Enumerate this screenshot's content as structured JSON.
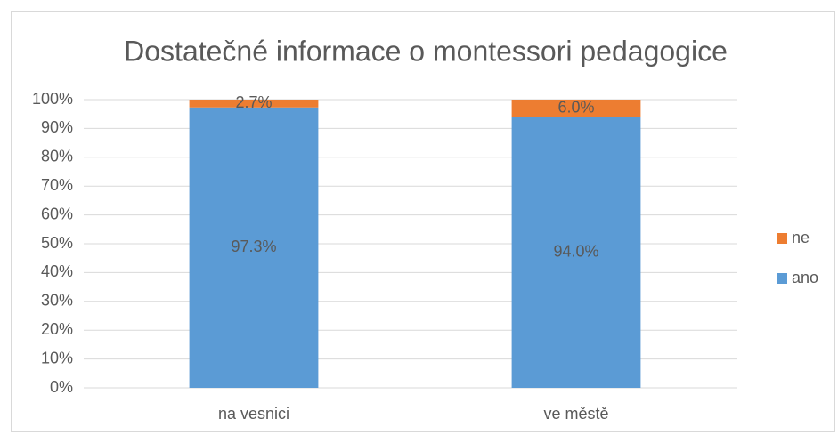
{
  "chart_data": {
    "type": "stacked_bar",
    "title": "Dostatečné informace o montessori pedagogice",
    "categories": [
      "na vesnici",
      "ve městě"
    ],
    "series": [
      {
        "name": "ano",
        "color": "#5b9bd5",
        "values": [
          97.3,
          94.0
        ],
        "value_labels": [
          "97.3%",
          "94.0%"
        ]
      },
      {
        "name": "ne",
        "color": "#ed7d31",
        "values": [
          2.7,
          6.0
        ],
        "value_labels": [
          "2.7%",
          "6.0%"
        ]
      }
    ],
    "ylim": [
      0,
      100
    ],
    "yticks": [
      {
        "value": 0,
        "label": "0%"
      },
      {
        "value": 10,
        "label": "10%"
      },
      {
        "value": 20,
        "label": "20%"
      },
      {
        "value": 30,
        "label": "30%"
      },
      {
        "value": 40,
        "label": "40%"
      },
      {
        "value": 50,
        "label": "50%"
      },
      {
        "value": 60,
        "label": "60%"
      },
      {
        "value": 70,
        "label": "70%"
      },
      {
        "value": 80,
        "label": "80%"
      },
      {
        "value": 90,
        "label": "90%"
      },
      {
        "value": 100,
        "label": "100%"
      }
    ],
    "grid": true,
    "legend": "right"
  }
}
